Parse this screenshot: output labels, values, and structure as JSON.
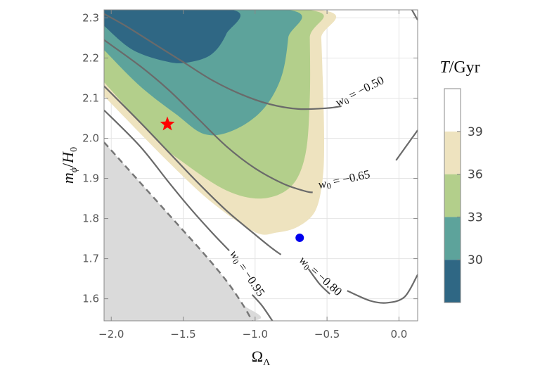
{
  "chart_data": {
    "type": "contour",
    "xlabel": "Ω",
    "xlabel_sub": "Λ",
    "ylabel_m": "m",
    "ylabel_phi": "ϕ",
    "ylabel_slash": "/",
    "ylabel_H": "H",
    "ylabel_zero": "0",
    "xlim": [
      -2.05,
      0.13
    ],
    "ylim": [
      1.545,
      2.32
    ],
    "xticks": [
      -2.0,
      -1.5,
      -1.0,
      -0.5,
      0.0
    ],
    "xtick_labels": [
      "−2.0",
      "−1.5",
      "−1.0",
      "−0.5",
      "0.0"
    ],
    "yticks": [
      1.6,
      1.7,
      1.8,
      1.9,
      2.0,
      2.1,
      2.2,
      2.3
    ],
    "ytick_labels": [
      "1.6",
      "1.7",
      "1.8",
      "1.9",
      "2.0",
      "2.1",
      "2.2",
      "2.3"
    ],
    "grid": true,
    "colorbar": {
      "title_T": "T",
      "title_unit": "/Gyr",
      "range": [
        27,
        42
      ],
      "ticks": [
        30,
        33,
        36,
        39
      ],
      "tick_labels": [
        "30",
        "33",
        "36",
        "39"
      ],
      "bands": [
        {
          "from": 27,
          "to": 30,
          "color": "#2f6784"
        },
        {
          "from": 30,
          "to": 33,
          "color": "#5da39b"
        },
        {
          "from": 33,
          "to": 36,
          "color": "#b3cf8b"
        },
        {
          "from": 36,
          "to": 39,
          "color": "#eee3bf"
        },
        {
          "from": 39,
          "to": 42,
          "color": "#ffffff"
        }
      ]
    },
    "regions": [
      {
        "name": "T 36-39 Gyr",
        "color": "#eee3bf",
        "points": [
          [
            -2.05,
            2.105
          ],
          [
            -1.6,
            1.94
          ],
          [
            -1.3,
            1.84
          ],
          [
            -1.0,
            1.766
          ],
          [
            -0.85,
            1.765
          ],
          [
            -0.7,
            1.78
          ],
          [
            -0.58,
            1.82
          ],
          [
            -0.53,
            1.9
          ],
          [
            -0.52,
            2.0
          ],
          [
            -0.53,
            2.15
          ],
          [
            -0.54,
            2.25
          ],
          [
            -0.55,
            2.32
          ],
          [
            -2.05,
            2.32
          ]
        ]
      },
      {
        "name": "T 33-36 Gyr",
        "color": "#b3cf8b",
        "points": [
          [
            -2.05,
            2.14
          ],
          [
            -1.7,
            2.0
          ],
          [
            -1.5,
            1.94
          ],
          [
            -1.2,
            1.87
          ],
          [
            -0.95,
            1.85
          ],
          [
            -0.75,
            1.88
          ],
          [
            -0.65,
            1.96
          ],
          [
            -0.62,
            2.1
          ],
          [
            -0.62,
            2.25
          ],
          [
            -0.63,
            2.32
          ],
          [
            -2.05,
            2.32
          ]
        ]
      },
      {
        "name": "T 30-33 Gyr",
        "color": "#5da39b",
        "points": [
          [
            -2.05,
            2.22
          ],
          [
            -1.8,
            2.13
          ],
          [
            -1.55,
            2.06
          ],
          [
            -1.35,
            2.01
          ],
          [
            -1.15,
            2.02
          ],
          [
            -0.95,
            2.07
          ],
          [
            -0.82,
            2.15
          ],
          [
            -0.77,
            2.25
          ],
          [
            -0.77,
            2.32
          ],
          [
            -2.05,
            2.32
          ]
        ]
      },
      {
        "name": "T 27-30 Gyr",
        "color": "#2f6784",
        "points": [
          [
            -2.05,
            2.28
          ],
          [
            -1.85,
            2.22
          ],
          [
            -1.6,
            2.19
          ],
          [
            -1.45,
            2.19
          ],
          [
            -1.3,
            2.21
          ],
          [
            -1.2,
            2.26
          ],
          [
            -1.16,
            2.32
          ],
          [
            -2.05,
            2.32
          ]
        ]
      },
      {
        "name": "excluded region",
        "color": "#dadada",
        "points": [
          [
            -2.05,
            1.99
          ],
          [
            -1.8,
            1.89
          ],
          [
            -1.55,
            1.79
          ],
          [
            -1.35,
            1.71
          ],
          [
            -1.2,
            1.645
          ],
          [
            -1.09,
            1.588
          ],
          [
            -1.02,
            1.545
          ],
          [
            -2.05,
            1.545
          ]
        ]
      }
    ],
    "boundary": {
      "name": "dashed boundary",
      "color": "#777777",
      "points": [
        [
          -2.05,
          1.99
        ],
        [
          -1.8,
          1.89
        ],
        [
          -1.55,
          1.79
        ],
        [
          -1.35,
          1.71
        ],
        [
          -1.2,
          1.645
        ],
        [
          -1.09,
          1.588
        ],
        [
          -1.02,
          1.545
        ]
      ]
    },
    "contours": [
      {
        "label": "w0 = −0.50",
        "w_text": "w",
        "sub": "0",
        "value_text": " = −0.50",
        "label_at": [
          -0.27,
          2.115
        ],
        "label_angle": -27,
        "points": [
          [
            -2.05,
            2.31
          ],
          [
            -1.9,
            2.28
          ],
          [
            -1.7,
            2.235
          ],
          [
            -1.5,
            2.19
          ],
          [
            -1.3,
            2.145
          ],
          [
            -1.1,
            2.11
          ],
          [
            -0.9,
            2.085
          ],
          [
            -0.7,
            2.073
          ],
          [
            -0.5,
            2.075
          ],
          [
            -0.4,
            2.08
          ]
        ]
      },
      {
        "label": "w0 = −0.65",
        "w_text": "w",
        "sub": "0",
        "value_text": " = −0.65",
        "label_at": [
          -0.38,
          1.895
        ],
        "label_angle": -12,
        "points": [
          [
            -2.05,
            2.245
          ],
          [
            -1.8,
            2.18
          ],
          [
            -1.6,
            2.12
          ],
          [
            -1.4,
            2.05
          ],
          [
            -1.2,
            1.98
          ],
          [
            -1.0,
            1.925
          ],
          [
            -0.8,
            1.886
          ],
          [
            -0.65,
            1.868
          ],
          [
            -0.6,
            1.865
          ]
        ]
      },
      {
        "label": "w0 = −0.80",
        "w_text": "w",
        "sub": "0",
        "value_text": " = −0.80",
        "label_at": [
          -0.55,
          1.655
        ],
        "label_angle": 42,
        "points": [
          [
            -2.05,
            2.13
          ],
          [
            -1.8,
            2.04
          ],
          [
            -1.6,
            1.965
          ],
          [
            -1.4,
            1.89
          ],
          [
            -1.2,
            1.82
          ],
          [
            -1.0,
            1.76
          ],
          [
            -0.88,
            1.725
          ],
          [
            -0.82,
            1.71
          ]
        ]
      },
      {
        "label": "w0 = −0.95",
        "w_text": "w",
        "sub": "0",
        "value_text": " = −0.95",
        "label_at": [
          -1.06,
          1.662
        ],
        "label_angle": 56,
        "points": [
          [
            -2.05,
            2.07
          ],
          [
            -1.8,
            1.98
          ],
          [
            -1.6,
            1.89
          ],
          [
            -1.45,
            1.825
          ],
          [
            -1.3,
            1.765
          ],
          [
            -1.18,
            1.72
          ]
        ]
      }
    ],
    "contour_tails": [
      {
        "points": [
          [
            -1.02,
            1.61
          ],
          [
            -0.95,
            1.582
          ],
          [
            -0.88,
            1.545
          ]
        ]
      },
      {
        "points": [
          [
            -0.63,
            1.675
          ],
          [
            -0.55,
            1.636
          ],
          [
            -0.48,
            1.612
          ]
        ]
      },
      {
        "points": [
          [
            -0.36,
            1.62
          ],
          [
            -0.2,
            1.595
          ],
          [
            -0.08,
            1.59
          ],
          [
            0.04,
            1.605
          ],
          [
            0.13,
            1.66
          ]
        ]
      },
      {
        "points": [
          [
            -0.02,
            1.945
          ],
          [
            0.05,
            1.98
          ],
          [
            0.13,
            2.02
          ]
        ]
      },
      {
        "points": [
          [
            0.09,
            2.32
          ],
          [
            0.13,
            2.295
          ]
        ]
      }
    ],
    "markers": [
      {
        "name": "star",
        "shape": "star",
        "color": "#ff0000",
        "x": -1.61,
        "y": 2.035
      },
      {
        "name": "dot",
        "shape": "circle",
        "color": "#0000ee",
        "x": -0.69,
        "y": 1.752
      }
    ]
  }
}
